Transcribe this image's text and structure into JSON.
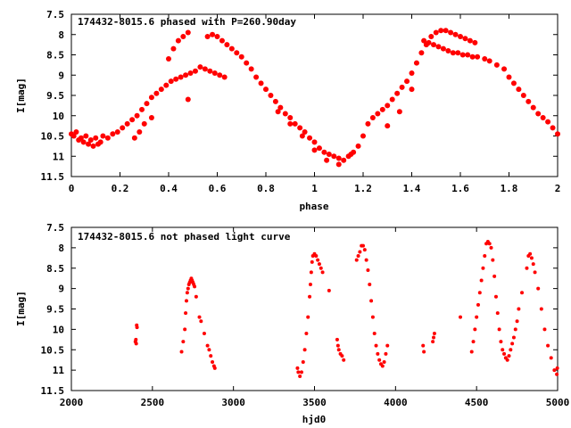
{
  "chart_data": [
    {
      "type": "scatter",
      "title": "174432-8015.6 phased with P=260.90day",
      "xlabel": "phase",
      "ylabel": "I[mag]",
      "xlim": [
        0,
        2
      ],
      "ylim": [
        7.5,
        11.5
      ],
      "y_inverted": true,
      "grid": false,
      "marker_color": "#ff0000",
      "x_ticks": [
        {
          "value": 0,
          "label": "0"
        },
        {
          "value": 0.2,
          "label": "0.2"
        },
        {
          "value": 0.4,
          "label": "0.4"
        },
        {
          "value": 0.6,
          "label": "0.6"
        },
        {
          "value": 0.8,
          "label": "0.8"
        },
        {
          "value": 1,
          "label": "1"
        },
        {
          "value": 1.2,
          "label": "1.2"
        },
        {
          "value": 1.4,
          "label": "1.4"
        },
        {
          "value": 1.6,
          "label": "1.6"
        },
        {
          "value": 1.8,
          "label": "1.8"
        },
        {
          "value": 2,
          "label": "2"
        }
      ],
      "y_ticks": [
        {
          "value": 7.5,
          "label": "7.5"
        },
        {
          "value": 8,
          "label": "8"
        },
        {
          "value": 8.5,
          "label": "8.5"
        },
        {
          "value": 9,
          "label": "9"
        },
        {
          "value": 9.5,
          "label": "9.5"
        },
        {
          "value": 10,
          "label": "10"
        },
        {
          "value": 10.5,
          "label": "10.5"
        },
        {
          "value": 11,
          "label": "11"
        },
        {
          "value": 11.5,
          "label": "11.5"
        }
      ],
      "points": [
        [
          0.0,
          10.45
        ],
        [
          0.01,
          10.5
        ],
        [
          0.02,
          10.4
        ],
        [
          0.03,
          10.6
        ],
        [
          0.04,
          10.55
        ],
        [
          0.05,
          10.65
        ],
        [
          0.06,
          10.5
        ],
        [
          0.07,
          10.7
        ],
        [
          0.08,
          10.6
        ],
        [
          0.09,
          10.75
        ],
        [
          0.1,
          10.55
        ],
        [
          0.11,
          10.7
        ],
        [
          0.12,
          10.65
        ],
        [
          0.13,
          10.5
        ],
        [
          0.15,
          10.55
        ],
        [
          0.17,
          10.45
        ],
        [
          0.19,
          10.4
        ],
        [
          0.21,
          10.3
        ],
        [
          0.23,
          10.2
        ],
        [
          0.25,
          10.1
        ],
        [
          0.27,
          10.0
        ],
        [
          0.29,
          9.85
        ],
        [
          0.31,
          9.7
        ],
        [
          0.33,
          9.55
        ],
        [
          0.35,
          9.45
        ],
        [
          0.37,
          9.35
        ],
        [
          0.39,
          9.25
        ],
        [
          0.41,
          9.15
        ],
        [
          0.43,
          9.1
        ],
        [
          0.45,
          9.05
        ],
        [
          0.47,
          9.0
        ],
        [
          0.49,
          8.95
        ],
        [
          0.51,
          8.9
        ],
        [
          0.53,
          8.8
        ],
        [
          0.55,
          8.85
        ],
        [
          0.57,
          8.9
        ],
        [
          0.59,
          8.95
        ],
        [
          0.61,
          9.0
        ],
        [
          0.63,
          9.05
        ],
        [
          0.26,
          10.55
        ],
        [
          0.28,
          10.4
        ],
        [
          0.4,
          8.6
        ],
        [
          0.42,
          8.35
        ],
        [
          0.44,
          8.15
        ],
        [
          0.46,
          8.05
        ],
        [
          0.48,
          7.95
        ],
        [
          0.48,
          9.6
        ],
        [
          0.56,
          8.05
        ],
        [
          0.58,
          8.0
        ],
        [
          0.6,
          8.05
        ],
        [
          0.62,
          8.15
        ],
        [
          0.64,
          8.25
        ],
        [
          0.66,
          8.35
        ],
        [
          0.68,
          8.45
        ],
        [
          0.7,
          8.55
        ],
        [
          0.72,
          8.7
        ],
        [
          0.74,
          8.85
        ],
        [
          0.76,
          9.05
        ],
        [
          0.78,
          9.2
        ],
        [
          0.8,
          9.35
        ],
        [
          0.82,
          9.5
        ],
        [
          0.84,
          9.65
        ],
        [
          0.86,
          9.8
        ],
        [
          0.88,
          9.95
        ],
        [
          0.9,
          10.05
        ],
        [
          0.92,
          10.2
        ],
        [
          0.94,
          10.3
        ],
        [
          0.96,
          10.4
        ],
        [
          0.98,
          10.55
        ],
        [
          1.0,
          10.65
        ],
        [
          1.02,
          10.8
        ],
        [
          1.04,
          10.9
        ],
        [
          1.06,
          10.95
        ],
        [
          1.08,
          11.0
        ],
        [
          1.1,
          11.05
        ],
        [
          1.12,
          11.1
        ],
        [
          1.14,
          11.0
        ],
        [
          1.16,
          10.9
        ],
        [
          1.18,
          10.75
        ],
        [
          1.2,
          10.5
        ],
        [
          0.85,
          9.9
        ],
        [
          0.9,
          10.2
        ],
        [
          0.95,
          10.5
        ],
        [
          1.0,
          10.85
        ],
        [
          1.05,
          11.1
        ],
        [
          1.1,
          11.2
        ],
        [
          1.15,
          10.95
        ],
        [
          1.22,
          10.2
        ],
        [
          1.24,
          10.05
        ],
        [
          1.26,
          9.95
        ],
        [
          1.28,
          9.85
        ],
        [
          1.3,
          9.75
        ],
        [
          1.32,
          9.6
        ],
        [
          1.34,
          9.45
        ],
        [
          1.36,
          9.3
        ],
        [
          1.38,
          9.15
        ],
        [
          1.4,
          8.95
        ],
        [
          1.42,
          8.7
        ],
        [
          1.44,
          8.45
        ],
        [
          1.46,
          8.25
        ],
        [
          1.48,
          8.05
        ],
        [
          1.5,
          7.95
        ],
        [
          1.52,
          7.9
        ],
        [
          1.54,
          7.9
        ],
        [
          1.56,
          7.95
        ],
        [
          1.58,
          8.0
        ],
        [
          1.6,
          8.05
        ],
        [
          1.62,
          8.1
        ],
        [
          1.64,
          8.15
        ],
        [
          1.66,
          8.2
        ],
        [
          1.45,
          8.15
        ],
        [
          1.47,
          8.2
        ],
        [
          1.49,
          8.25
        ],
        [
          1.51,
          8.3
        ],
        [
          1.53,
          8.35
        ],
        [
          1.55,
          8.4
        ],
        [
          1.57,
          8.45
        ],
        [
          1.59,
          8.45
        ],
        [
          1.61,
          8.5
        ],
        [
          1.63,
          8.5
        ],
        [
          1.65,
          8.55
        ],
        [
          1.67,
          8.55
        ],
        [
          1.7,
          8.6
        ],
        [
          1.72,
          8.65
        ],
        [
          1.75,
          8.75
        ],
        [
          1.78,
          8.85
        ],
        [
          1.8,
          9.05
        ],
        [
          1.82,
          9.2
        ],
        [
          1.84,
          9.35
        ],
        [
          1.86,
          9.5
        ],
        [
          1.88,
          9.65
        ],
        [
          1.9,
          9.8
        ],
        [
          1.92,
          9.95
        ],
        [
          1.94,
          10.05
        ],
        [
          1.96,
          10.15
        ],
        [
          1.98,
          10.3
        ],
        [
          2.0,
          10.45
        ],
        [
          1.3,
          10.25
        ],
        [
          1.35,
          9.9
        ],
        [
          1.4,
          9.35
        ],
        [
          0.33,
          10.05
        ],
        [
          0.3,
          10.2
        ]
      ]
    },
    {
      "type": "scatter",
      "title": "174432-8015.6 not phased light curve",
      "xlabel": "hjd0",
      "ylabel": "I[mag]",
      "xlim": [
        2000,
        5000
      ],
      "ylim": [
        7.5,
        11.5
      ],
      "y_inverted": true,
      "grid": false,
      "marker_color": "#ff0000",
      "x_ticks": [
        {
          "value": 2000,
          "label": "2000"
        },
        {
          "value": 2500,
          "label": "2500"
        },
        {
          "value": 3000,
          "label": "3000"
        },
        {
          "value": 3500,
          "label": "3500"
        },
        {
          "value": 4000,
          "label": "4000"
        },
        {
          "value": 4500,
          "label": "4500"
        },
        {
          "value": 5000,
          "label": "5000"
        }
      ],
      "y_ticks": [
        {
          "value": 7.5,
          "label": "7.5"
        },
        {
          "value": 8,
          "label": "8"
        },
        {
          "value": 8.5,
          "label": "8.5"
        },
        {
          "value": 9,
          "label": "9"
        },
        {
          "value": 9.5,
          "label": "9.5"
        },
        {
          "value": 10,
          "label": "10"
        },
        {
          "value": 10.5,
          "label": "10.5"
        },
        {
          "value": 11,
          "label": "11"
        },
        {
          "value": 11.5,
          "label": "11.5"
        }
      ],
      "points": [
        [
          2395,
          10.3
        ],
        [
          2398,
          10.25
        ],
        [
          2400,
          10.35
        ],
        [
          2403,
          9.9
        ],
        [
          2405,
          9.95
        ],
        [
          2680,
          10.55
        ],
        [
          2690,
          10.3
        ],
        [
          2700,
          10.0
        ],
        [
          2705,
          9.6
        ],
        [
          2710,
          9.3
        ],
        [
          2715,
          9.1
        ],
        [
          2720,
          9.0
        ],
        [
          2725,
          8.9
        ],
        [
          2730,
          8.85
        ],
        [
          2735,
          8.8
        ],
        [
          2740,
          8.75
        ],
        [
          2745,
          8.8
        ],
        [
          2750,
          8.85
        ],
        [
          2755,
          8.9
        ],
        [
          2760,
          8.95
        ],
        [
          2770,
          9.2
        ],
        [
          2790,
          9.7
        ],
        [
          2800,
          9.8
        ],
        [
          2820,
          10.1
        ],
        [
          2840,
          10.4
        ],
        [
          2850,
          10.5
        ],
        [
          2860,
          10.65
        ],
        [
          2870,
          10.8
        ],
        [
          2880,
          10.9
        ],
        [
          2885,
          10.95
        ],
        [
          3395,
          10.95
        ],
        [
          3400,
          11.05
        ],
        [
          3410,
          11.15
        ],
        [
          3420,
          11.05
        ],
        [
          3430,
          10.8
        ],
        [
          3440,
          10.5
        ],
        [
          3450,
          10.1
        ],
        [
          3460,
          9.7
        ],
        [
          3470,
          9.2
        ],
        [
          3475,
          8.9
        ],
        [
          3480,
          8.6
        ],
        [
          3485,
          8.35
        ],
        [
          3490,
          8.2
        ],
        [
          3500,
          8.15
        ],
        [
          3510,
          8.2
        ],
        [
          3520,
          8.3
        ],
        [
          3530,
          8.4
        ],
        [
          3540,
          8.5
        ],
        [
          3550,
          8.6
        ],
        [
          3590,
          9.05
        ],
        [
          3640,
          10.25
        ],
        [
          3645,
          10.4
        ],
        [
          3650,
          10.5
        ],
        [
          3660,
          10.6
        ],
        [
          3670,
          10.65
        ],
        [
          3680,
          10.75
        ],
        [
          3760,
          8.3
        ],
        [
          3770,
          8.2
        ],
        [
          3780,
          8.1
        ],
        [
          3790,
          7.95
        ],
        [
          3800,
          7.95
        ],
        [
          3810,
          8.05
        ],
        [
          3820,
          8.3
        ],
        [
          3830,
          8.55
        ],
        [
          3840,
          8.9
        ],
        [
          3850,
          9.3
        ],
        [
          3860,
          9.7
        ],
        [
          3870,
          10.1
        ],
        [
          3880,
          10.4
        ],
        [
          3890,
          10.6
        ],
        [
          3900,
          10.75
        ],
        [
          3910,
          10.85
        ],
        [
          3920,
          10.9
        ],
        [
          3930,
          10.8
        ],
        [
          3940,
          10.6
        ],
        [
          3950,
          10.4
        ],
        [
          4170,
          10.4
        ],
        [
          4175,
          10.55
        ],
        [
          4230,
          10.3
        ],
        [
          4235,
          10.2
        ],
        [
          4240,
          10.1
        ],
        [
          4400,
          9.7
        ],
        [
          4470,
          10.55
        ],
        [
          4480,
          10.3
        ],
        [
          4490,
          10.0
        ],
        [
          4500,
          9.7
        ],
        [
          4510,
          9.4
        ],
        [
          4520,
          9.1
        ],
        [
          4530,
          8.8
        ],
        [
          4540,
          8.5
        ],
        [
          4550,
          8.2
        ],
        [
          4560,
          7.9
        ],
        [
          4570,
          7.85
        ],
        [
          4580,
          7.9
        ],
        [
          4590,
          8.0
        ],
        [
          4600,
          8.3
        ],
        [
          4610,
          8.7
        ],
        [
          4620,
          9.2
        ],
        [
          4630,
          9.6
        ],
        [
          4640,
          10.0
        ],
        [
          4650,
          10.3
        ],
        [
          4660,
          10.5
        ],
        [
          4670,
          10.6
        ],
        [
          4680,
          10.7
        ],
        [
          4690,
          10.75
        ],
        [
          4700,
          10.65
        ],
        [
          4710,
          10.5
        ],
        [
          4720,
          10.35
        ],
        [
          4730,
          10.2
        ],
        [
          4740,
          10.0
        ],
        [
          4750,
          9.8
        ],
        [
          4760,
          9.5
        ],
        [
          4780,
          9.1
        ],
        [
          4810,
          8.5
        ],
        [
          4820,
          8.2
        ],
        [
          4830,
          8.15
        ],
        [
          4840,
          8.25
        ],
        [
          4850,
          8.4
        ],
        [
          4860,
          8.6
        ],
        [
          4880,
          9.0
        ],
        [
          4900,
          9.5
        ],
        [
          4920,
          10.0
        ],
        [
          4940,
          10.4
        ],
        [
          4960,
          10.7
        ],
        [
          4980,
          11.0
        ],
        [
          4995,
          11.1
        ],
        [
          4998,
          10.95
        ]
      ]
    }
  ]
}
